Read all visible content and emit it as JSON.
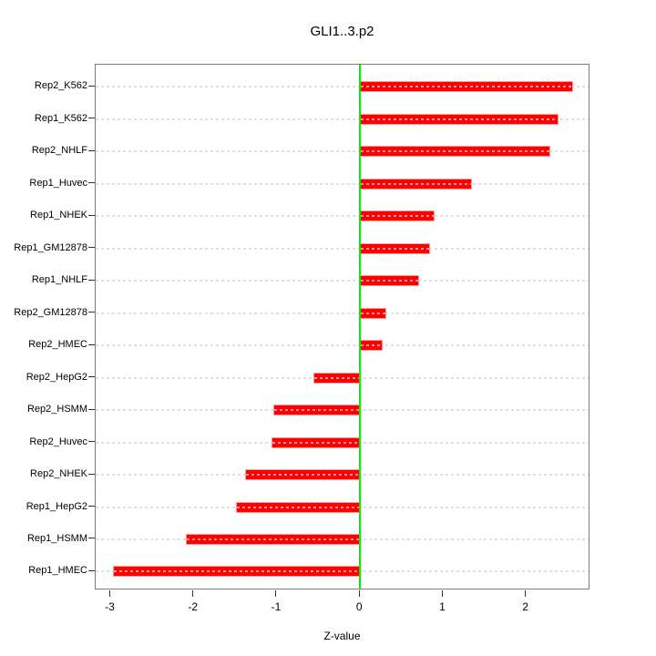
{
  "title": "GLI1..3.p2",
  "chart_data": {
    "type": "bar",
    "orientation": "horizontal",
    "title": "GLI1..3.p2",
    "xlabel": "Z-value",
    "ylabel": "",
    "categories": [
      "Rep2_K562",
      "Rep1_K562",
      "Rep2_NHLF",
      "Rep1_Huvec",
      "Rep1_NHEK",
      "Rep1_GM12878",
      "Rep1_NHLF",
      "Rep2_GM12878",
      "Rep2_HMEC",
      "Rep2_HepG2",
      "Rep2_HSMM",
      "Rep2_Huvec",
      "Rep2_NHEK",
      "Rep1_HepG2",
      "Rep1_HSMM",
      "Rep1_HMEC"
    ],
    "values": [
      2.56,
      2.39,
      2.29,
      1.35,
      0.9,
      0.84,
      0.71,
      0.32,
      0.27,
      -0.56,
      -1.04,
      -1.06,
      -1.38,
      -1.49,
      -2.1,
      -2.97
    ],
    "xlim": [
      -3.18,
      2.77
    ],
    "xticks": [
      -3,
      -2,
      -1,
      0,
      1,
      2
    ],
    "grid": "dashed-horizontal-per-category",
    "legend": "none",
    "zero_reference_line": 0,
    "colors": {
      "bar": "#ff0000",
      "bar_border": "#ff9d9d",
      "zero_line": "#00ee00",
      "gridline": "#dedede",
      "frame": "#7d7d7d",
      "tick": "#333333",
      "text": "#000000",
      "background": "#ffffff"
    }
  }
}
